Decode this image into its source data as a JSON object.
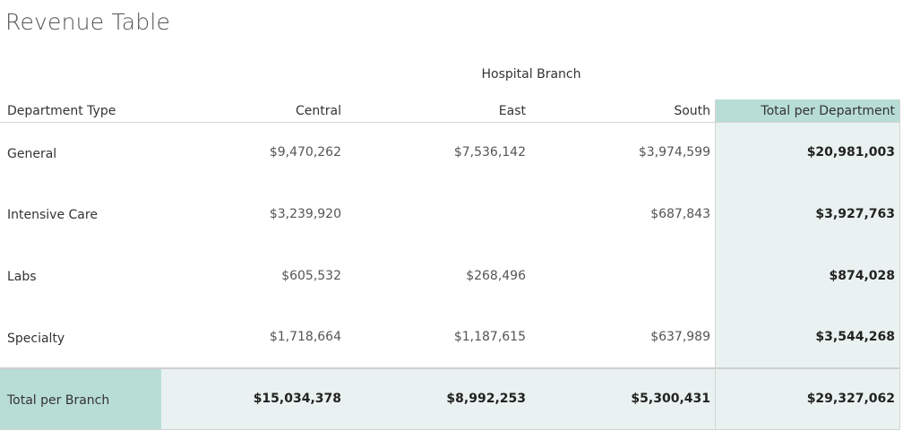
{
  "title": "Revenue Table",
  "chart_data": {
    "type": "table",
    "group_header": "Hospital Branch",
    "row_header": "Department Type",
    "columns": [
      "Central",
      "East",
      "South"
    ],
    "total_column_label": "Total per Department",
    "rows": [
      {
        "label": "General",
        "values": [
          "$9,470,262",
          "$7,536,142",
          "$3,974,599"
        ],
        "total": "$20,981,003"
      },
      {
        "label": "Intensive Care",
        "values": [
          "$3,239,920",
          "",
          "$687,843"
        ],
        "total": "$3,927,763"
      },
      {
        "label": "Labs",
        "values": [
          "$605,532",
          "$268,496",
          ""
        ],
        "total": "$874,028"
      },
      {
        "label": "Specialty",
        "values": [
          "$1,718,664",
          "$1,187,615",
          "$637,989"
        ],
        "total": "$3,544,268"
      }
    ],
    "total_row": {
      "label": "Total per Branch",
      "values": [
        "$15,034,378",
        "$8,992,253",
        "$5,300,431"
      ],
      "total": "$29,327,062"
    }
  },
  "colors": {
    "header_teal": "#b8ddd6",
    "total_bg": "#e9f2f0",
    "grid": "#d4d4d4"
  }
}
